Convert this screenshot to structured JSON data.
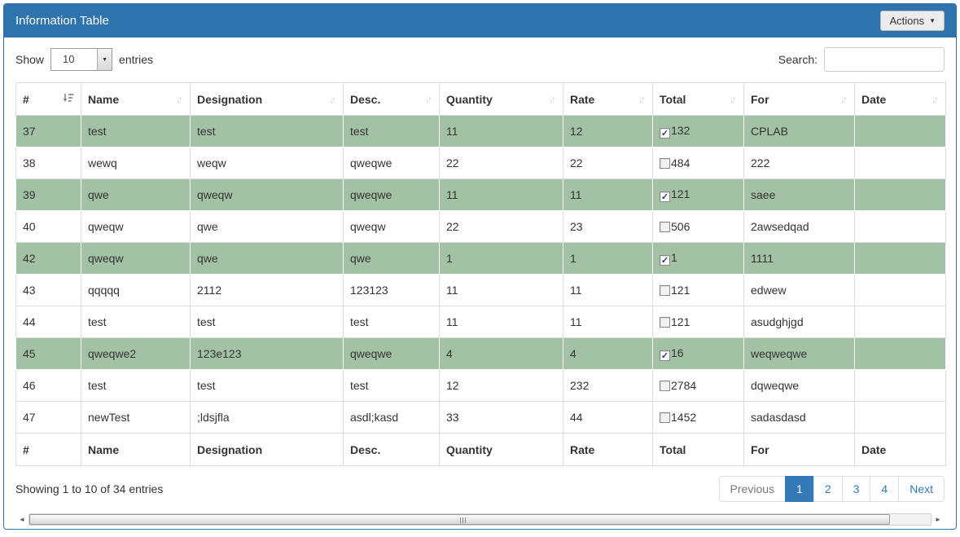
{
  "panel": {
    "title": "Information Table",
    "actions_button": "Actions"
  },
  "controls": {
    "show_label": "Show",
    "page_length": "10",
    "entries_label": "entries",
    "search_label": "Search:",
    "search_value": ""
  },
  "table": {
    "columns": [
      "#",
      "Name",
      "Designation",
      "Desc.",
      "Quantity",
      "Rate",
      "Total",
      "For",
      "Date"
    ],
    "sorted_column": "#",
    "rows": [
      {
        "num": "37",
        "name": "test",
        "designation": "test",
        "desc": "test",
        "quantity": "11",
        "rate": "12",
        "total": "132",
        "checked": true,
        "for": "CPLAB",
        "date": "",
        "selected": true
      },
      {
        "num": "38",
        "name": "wewq",
        "designation": "weqw",
        "desc": "qweqwe",
        "quantity": "22",
        "rate": "22",
        "total": "484",
        "checked": false,
        "for": "222",
        "date": "",
        "selected": false
      },
      {
        "num": "39",
        "name": "qwe",
        "designation": "qweqw",
        "desc": "qweqwe",
        "quantity": "11",
        "rate": "11",
        "total": "121",
        "checked": true,
        "for": "saee",
        "date": "",
        "selected": true
      },
      {
        "num": "40",
        "name": "qweqw",
        "designation": "qwe",
        "desc": "qweqw",
        "quantity": "22",
        "rate": "23",
        "total": "506",
        "checked": false,
        "for": "2awsedqad",
        "date": "",
        "selected": false
      },
      {
        "num": "42",
        "name": "qweqw",
        "designation": "qwe",
        "desc": "qwe",
        "quantity": "1",
        "rate": "1",
        "total": "1",
        "checked": true,
        "for": "1111",
        "date": "",
        "selected": true
      },
      {
        "num": "43",
        "name": "qqqqq",
        "designation": "2112",
        "desc": "123123",
        "quantity": "11",
        "rate": "11",
        "total": "121",
        "checked": false,
        "for": "edwew",
        "date": "",
        "selected": false
      },
      {
        "num": "44",
        "name": "test",
        "designation": "test",
        "desc": "test",
        "quantity": "11",
        "rate": "11",
        "total": "121",
        "checked": false,
        "for": "asudghjgd",
        "date": "",
        "selected": false
      },
      {
        "num": "45",
        "name": "qweqwe2",
        "designation": "123e123",
        "desc": "qweqwe",
        "quantity": "4",
        "rate": "4",
        "total": "16",
        "checked": true,
        "for": "weqweqwe",
        "date": "",
        "selected": true
      },
      {
        "num": "46",
        "name": "test",
        "designation": "test",
        "desc": "test",
        "quantity": "12",
        "rate": "232",
        "total": "2784",
        "checked": false,
        "for": "dqweqwe",
        "date": "",
        "selected": false
      },
      {
        "num": "47",
        "name": "newTest",
        "designation": ";ldsjfla",
        "desc": "asdl;kasd",
        "quantity": "33",
        "rate": "44",
        "total": "1452",
        "checked": false,
        "for": "sadasdasd",
        "date": "",
        "selected": false
      }
    ]
  },
  "summary": {
    "info": "Showing 1 to 10 of 34 entries"
  },
  "pagination": {
    "previous": "Previous",
    "pages": [
      "1",
      "2",
      "3",
      "4"
    ],
    "active_page": "1",
    "next": "Next"
  },
  "icons": {
    "caret_down": "▼",
    "sort_both": "↓↑",
    "checkmark": "✓",
    "scroll_left": "◄",
    "scroll_right": "►"
  },
  "colors": {
    "panel_accent": "#2e73ae",
    "selected_row": "#a3c2a5",
    "pagination_active": "#337ab7"
  }
}
